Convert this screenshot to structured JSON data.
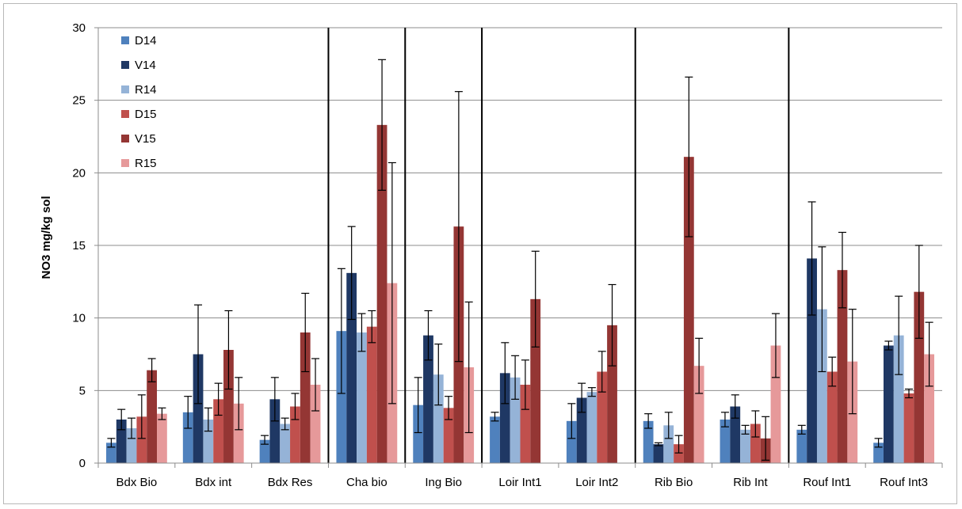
{
  "chart_data": {
    "type": "bar",
    "title": "",
    "xlabel": "",
    "ylabel": "NO3 mg/kg sol",
    "ylim": [
      0,
      30
    ],
    "yticks": [
      0,
      5,
      10,
      15,
      20,
      25,
      30
    ],
    "grid": true,
    "legend_position": "top-left",
    "categories": [
      "Bdx Bio",
      "Bdx int",
      "Bdx Res",
      "Cha bio",
      "Ing Bio",
      "Loir Int1",
      "Loir Int2",
      "Rib Bio",
      "Rib Int",
      "Rouf Int1",
      "Rouf Int3"
    ],
    "group_separators_after": [
      2,
      3,
      4,
      6,
      8
    ],
    "series": [
      {
        "name": "D14",
        "color": "#4f81bd",
        "values": [
          1.4,
          3.5,
          1.6,
          9.1,
          4.0,
          3.2,
          2.9,
          2.9,
          3.0,
          2.3,
          1.4
        ],
        "errors": [
          0.3,
          1.1,
          0.3,
          4.3,
          1.9,
          0.3,
          1.2,
          0.5,
          0.5,
          0.3,
          0.3
        ]
      },
      {
        "name": "V14",
        "color": "#1f3864",
        "values": [
          3.0,
          7.5,
          4.4,
          13.1,
          8.8,
          6.2,
          4.5,
          1.3,
          3.9,
          14.1,
          8.1
        ],
        "errors": [
          0.7,
          3.4,
          1.5,
          3.2,
          1.7,
          2.1,
          1.0,
          0.1,
          0.8,
          3.9,
          0.3
        ]
      },
      {
        "name": "R14",
        "color": "#95b3d7",
        "values": [
          2.4,
          3.0,
          2.7,
          9.0,
          6.1,
          5.9,
          4.9,
          2.6,
          2.3,
          10.6,
          8.8
        ],
        "errors": [
          0.7,
          0.8,
          0.4,
          1.3,
          2.1,
          1.5,
          0.3,
          0.9,
          0.3,
          4.3,
          2.7
        ]
      },
      {
        "name": "D15",
        "color": "#c0504d",
        "values": [
          3.2,
          4.4,
          3.9,
          9.4,
          3.8,
          5.4,
          6.3,
          1.3,
          2.7,
          6.3,
          4.8
        ],
        "errors": [
          1.5,
          1.1,
          0.9,
          1.1,
          0.8,
          1.7,
          1.4,
          0.6,
          0.9,
          1.0,
          0.3
        ]
      },
      {
        "name": "V15",
        "color": "#943634",
        "values": [
          6.4,
          7.8,
          9.0,
          23.3,
          16.3,
          11.3,
          9.5,
          21.1,
          1.7,
          13.3,
          11.8
        ],
        "errors": [
          0.8,
          2.7,
          2.7,
          4.5,
          9.3,
          3.3,
          2.8,
          5.5,
          1.5,
          2.6,
          3.2
        ]
      },
      {
        "name": "R15",
        "color": "#e6999a",
        "values": [
          3.4,
          4.1,
          5.4,
          12.4,
          6.6,
          0.0,
          0.0,
          6.7,
          8.1,
          7.0,
          7.5
        ],
        "errors": [
          0.4,
          1.8,
          1.8,
          8.3,
          4.5,
          0.0,
          0.0,
          1.9,
          2.2,
          3.6,
          2.2
        ]
      }
    ]
  }
}
